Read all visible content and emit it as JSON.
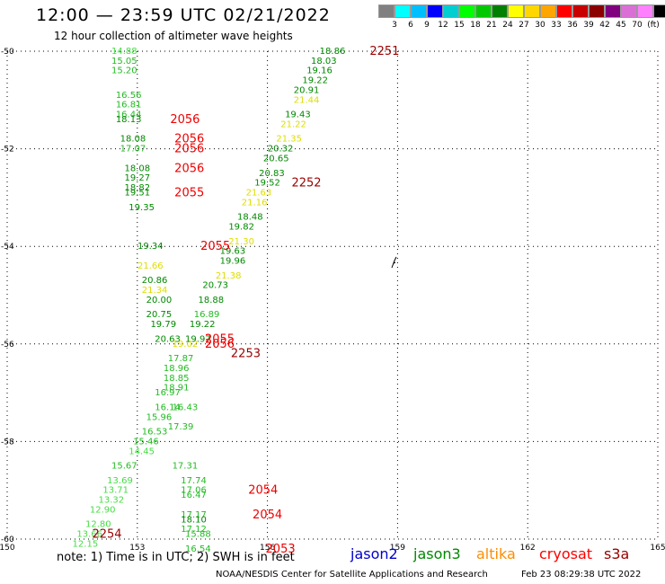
{
  "header": {
    "title": "12:00 — 23:59 UTC 02/21/2022",
    "subtitle": "12 hour collection of altimeter wave heights"
  },
  "legend": {
    "colors": [
      "#808080",
      "#00ffff",
      "#00bfff",
      "#0000ff",
      "#00ced1",
      "#00ff00",
      "#00c800",
      "#008000",
      "#ffff00",
      "#ffd700",
      "#ffa500",
      "#ff0000",
      "#c80000",
      "#8b0000",
      "#800080",
      "#da70d6",
      "#ff80ff",
      "#000000"
    ],
    "labels": [
      "3",
      "6",
      "9",
      "12",
      "15",
      "18",
      "21",
      "24",
      "27",
      "30",
      "33",
      "36",
      "39",
      "42",
      "45",
      "70",
      "(ft)"
    ]
  },
  "map": {
    "lat_range": [
      -60,
      -50
    ],
    "lon_range": [
      150,
      165
    ],
    "lat_ticks": [
      "-50",
      "-52",
      "-54",
      "-56",
      "-58",
      "-60"
    ],
    "lon_ticks": [
      "150",
      "153",
      "156",
      "159",
      "162",
      "165"
    ],
    "observations": [
      {
        "lat": -50.0,
        "lon": 152.7,
        "swh": "14.88",
        "color": "#44dd44"
      },
      {
        "lat": -50.2,
        "lon": 152.7,
        "swh": "15.05",
        "color": "#22bb22"
      },
      {
        "lat": -50.4,
        "lon": 152.7,
        "swh": "15.20",
        "color": "#22bb22"
      },
      {
        "lat": -50.9,
        "lon": 152.8,
        "swh": "16.56",
        "color": "#22bb22"
      },
      {
        "lat": -51.1,
        "lon": 152.8,
        "swh": "16.81",
        "color": "#22bb22"
      },
      {
        "lat": -51.3,
        "lon": 152.8,
        "swh": "16.44",
        "color": "#22bb22"
      },
      {
        "lat": -51.4,
        "lon": 152.8,
        "swh": "18.13",
        "color": "#008800"
      },
      {
        "lat": -51.8,
        "lon": 152.9,
        "swh": "18.08",
        "color": "#008800"
      },
      {
        "lat": -52.0,
        "lon": 152.9,
        "swh": "17.07",
        "color": "#22bb22"
      },
      {
        "lat": -52.4,
        "lon": 153.0,
        "swh": "18.08",
        "color": "#008800"
      },
      {
        "lat": -52.6,
        "lon": 153.0,
        "swh": "19.27",
        "color": "#008800"
      },
      {
        "lat": -52.8,
        "lon": 153.0,
        "swh": "18.82",
        "color": "#008800"
      },
      {
        "lat": -52.9,
        "lon": 153.0,
        "swh": "19.51",
        "color": "#008800"
      },
      {
        "lat": -53.2,
        "lon": 153.1,
        "swh": "19.35",
        "color": "#008800"
      },
      {
        "lat": -54.0,
        "lon": 153.3,
        "swh": "19.34",
        "color": "#008800"
      },
      {
        "lat": -54.4,
        "lon": 153.3,
        "swh": "21.66",
        "color": "#dddd00"
      },
      {
        "lat": -54.7,
        "lon": 153.4,
        "swh": "20.86",
        "color": "#008800"
      },
      {
        "lat": -54.9,
        "lon": 153.4,
        "swh": "21.34",
        "color": "#dddd00"
      },
      {
        "lat": -55.1,
        "lon": 153.5,
        "swh": "20.00",
        "color": "#008800"
      },
      {
        "lat": -55.4,
        "lon": 153.5,
        "swh": "20.75",
        "color": "#008800"
      },
      {
        "lat": -55.6,
        "lon": 153.6,
        "swh": "19.79",
        "color": "#008800"
      },
      {
        "lat": -55.9,
        "lon": 153.7,
        "swh": "20.63",
        "color": "#008800"
      },
      {
        "lat": -56.0,
        "lon": 154.1,
        "swh": "19.02",
        "color": "#dddd00"
      },
      {
        "lat": -56.3,
        "lon": 154.0,
        "swh": "17.87",
        "color": "#22bb22"
      },
      {
        "lat": -56.5,
        "lon": 153.9,
        "swh": "18.96",
        "color": "#22bb22"
      },
      {
        "lat": -56.7,
        "lon": 153.9,
        "swh": "18.85",
        "color": "#22bb22"
      },
      {
        "lat": -56.9,
        "lon": 153.9,
        "swh": "18.91",
        "color": "#22bb22"
      },
      {
        "lat": -57.0,
        "lon": 153.7,
        "swh": "16.97",
        "color": "#22bb22"
      },
      {
        "lat": -57.3,
        "lon": 153.7,
        "swh": "16.14",
        "color": "#22bb22"
      },
      {
        "lat": -57.3,
        "lon": 154.1,
        "swh": "16.43",
        "color": "#22bb22"
      },
      {
        "lat": -57.5,
        "lon": 153.5,
        "swh": "15.96",
        "color": "#22bb22"
      },
      {
        "lat": -57.7,
        "lon": 154.0,
        "swh": "17.39",
        "color": "#22bb22"
      },
      {
        "lat": -57.8,
        "lon": 153.4,
        "swh": "16.53",
        "color": "#22bb22"
      },
      {
        "lat": -58.0,
        "lon": 153.2,
        "swh": "15.46",
        "color": "#22bb22"
      },
      {
        "lat": -58.2,
        "lon": 153.1,
        "swh": "14.45",
        "color": "#44dd44"
      },
      {
        "lat": -58.5,
        "lon": 152.7,
        "swh": "15.67",
        "color": "#22bb22"
      },
      {
        "lat": -58.5,
        "lon": 154.1,
        "swh": "17.31",
        "color": "#22bb22"
      },
      {
        "lat": -58.8,
        "lon": 152.6,
        "swh": "13.69",
        "color": "#44dd44"
      },
      {
        "lat": -58.8,
        "lon": 154.3,
        "swh": "17.74",
        "color": "#22bb22"
      },
      {
        "lat": -59.0,
        "lon": 152.5,
        "swh": "13.71",
        "color": "#44dd44"
      },
      {
        "lat": -59.0,
        "lon": 154.3,
        "swh": "17.06",
        "color": "#22bb22"
      },
      {
        "lat": -59.2,
        "lon": 152.4,
        "swh": "13.32",
        "color": "#44dd44"
      },
      {
        "lat": -59.1,
        "lon": 154.3,
        "swh": "16.47",
        "color": "#22bb22"
      },
      {
        "lat": -59.4,
        "lon": 152.2,
        "swh": "12.90",
        "color": "#44dd44"
      },
      {
        "lat": -59.5,
        "lon": 154.3,
        "swh": "17.17",
        "color": "#22bb22"
      },
      {
        "lat": -59.6,
        "lon": 154.3,
        "swh": "18.10",
        "color": "#008800"
      },
      {
        "lat": -59.7,
        "lon": 152.1,
        "swh": "12.80",
        "color": "#44dd44"
      },
      {
        "lat": -59.8,
        "lon": 154.3,
        "swh": "17.12",
        "color": "#22bb22"
      },
      {
        "lat": -59.9,
        "lon": 151.9,
        "swh": "13.66",
        "color": "#44dd44"
      },
      {
        "lat": -59.9,
        "lon": 154.4,
        "swh": "15.88",
        "color": "#22bb22"
      },
      {
        "lat": -60.1,
        "lon": 151.8,
        "swh": "12.15",
        "color": "#44dd44"
      },
      {
        "lat": -60.2,
        "lon": 154.4,
        "swh": "16.54",
        "color": "#22bb22"
      },
      {
        "lat": -50.0,
        "lon": 157.5,
        "swh": "18.86",
        "color": "#008800"
      },
      {
        "lat": -50.2,
        "lon": 157.3,
        "swh": "18.03",
        "color": "#008800"
      },
      {
        "lat": -50.4,
        "lon": 157.2,
        "swh": "19.16",
        "color": "#008800"
      },
      {
        "lat": -50.6,
        "lon": 157.1,
        "swh": "19.22",
        "color": "#008800"
      },
      {
        "lat": -50.8,
        "lon": 156.9,
        "swh": "20.91",
        "color": "#008800"
      },
      {
        "lat": -51.0,
        "lon": 156.9,
        "swh": "21.44",
        "color": "#dddd00"
      },
      {
        "lat": -51.3,
        "lon": 156.7,
        "swh": "19.43",
        "color": "#008800"
      },
      {
        "lat": -51.5,
        "lon": 156.6,
        "swh": "21.22",
        "color": "#dddd00"
      },
      {
        "lat": -51.8,
        "lon": 156.5,
        "swh": "21.35",
        "color": "#dddd00"
      },
      {
        "lat": -52.0,
        "lon": 156.3,
        "swh": "20.32",
        "color": "#008800"
      },
      {
        "lat": -52.2,
        "lon": 156.2,
        "swh": "20.65",
        "color": "#008800"
      },
      {
        "lat": -52.5,
        "lon": 156.1,
        "swh": "20.83",
        "color": "#008800"
      },
      {
        "lat": -52.7,
        "lon": 156.0,
        "swh": "19.52",
        "color": "#008800"
      },
      {
        "lat": -52.9,
        "lon": 155.8,
        "swh": "21.63",
        "color": "#dddd00"
      },
      {
        "lat": -53.1,
        "lon": 155.7,
        "swh": "21.16",
        "color": "#dddd00"
      },
      {
        "lat": -53.4,
        "lon": 155.6,
        "swh": "18.48",
        "color": "#008800"
      },
      {
        "lat": -53.6,
        "lon": 155.4,
        "swh": "19.82",
        "color": "#008800"
      },
      {
        "lat": -53.9,
        "lon": 155.4,
        "swh": "21.30",
        "color": "#dddd00"
      },
      {
        "lat": -54.1,
        "lon": 155.2,
        "swh": "19.63",
        "color": "#008800"
      },
      {
        "lat": -54.3,
        "lon": 155.2,
        "swh": "19.96",
        "color": "#008800"
      },
      {
        "lat": -54.6,
        "lon": 155.1,
        "swh": "21.38",
        "color": "#dddd00"
      },
      {
        "lat": -54.8,
        "lon": 154.8,
        "swh": "20.73",
        "color": "#008800"
      },
      {
        "lat": -55.1,
        "lon": 154.7,
        "swh": "18.88",
        "color": "#008800"
      },
      {
        "lat": -55.4,
        "lon": 154.6,
        "swh": "16.89",
        "color": "#22bb22"
      },
      {
        "lat": -55.6,
        "lon": 154.5,
        "swh": "19.22",
        "color": "#008800"
      },
      {
        "lat": -55.9,
        "lon": 154.4,
        "swh": "19.97",
        "color": "#008800"
      }
    ],
    "passes": [
      {
        "lat": -50.0,
        "lon": 158.7,
        "label": "2251",
        "color": "#990000"
      },
      {
        "lat": -51.4,
        "lon": 154.1,
        "label": "2056",
        "color": "#ee0000"
      },
      {
        "lat": -51.8,
        "lon": 154.2,
        "label": "2056",
        "color": "#ee0000"
      },
      {
        "lat": -52.0,
        "lon": 154.2,
        "label": "2056",
        "color": "#ee0000"
      },
      {
        "lat": -52.4,
        "lon": 154.2,
        "label": "2056",
        "color": "#ee0000"
      },
      {
        "lat": -52.7,
        "lon": 156.9,
        "label": "2252",
        "color": "#990000"
      },
      {
        "lat": -52.9,
        "lon": 154.2,
        "label": "2055",
        "color": "#ee0000"
      },
      {
        "lat": -54.0,
        "lon": 154.8,
        "label": "2055",
        "color": "#ee0000"
      },
      {
        "lat": -55.9,
        "lon": 154.9,
        "label": "2055",
        "color": "#ee0000"
      },
      {
        "lat": -56.0,
        "lon": 154.9,
        "label": "2056",
        "color": "#ee0000"
      },
      {
        "lat": -56.2,
        "lon": 155.5,
        "label": "2253",
        "color": "#990000"
      },
      {
        "lat": -59.0,
        "lon": 155.9,
        "label": "2054",
        "color": "#ee0000"
      },
      {
        "lat": -59.5,
        "lon": 156.0,
        "label": "2054",
        "color": "#ee0000"
      },
      {
        "lat": -59.9,
        "lon": 152.3,
        "label": "2254",
        "color": "#990000"
      },
      {
        "lat": -60.2,
        "lon": 156.3,
        "label": "2053",
        "color": "#ee0000"
      }
    ]
  },
  "footer": {
    "note": "note: 1) Time is in UTC; 2) SWH is in feet",
    "satellites": [
      {
        "name": "jason2",
        "color": "#0000cc"
      },
      {
        "name": "jason3",
        "color": "#008800"
      },
      {
        "name": "altika",
        "color": "#ff8c00"
      },
      {
        "name": "cryosat",
        "color": "#ff0000"
      },
      {
        "name": "s3a",
        "color": "#990000"
      }
    ],
    "credit": "NOAA/NESDIS Center for Satellite Applications and Research",
    "timestamp": "Feb 23 08:29:38 UTC 2022"
  }
}
